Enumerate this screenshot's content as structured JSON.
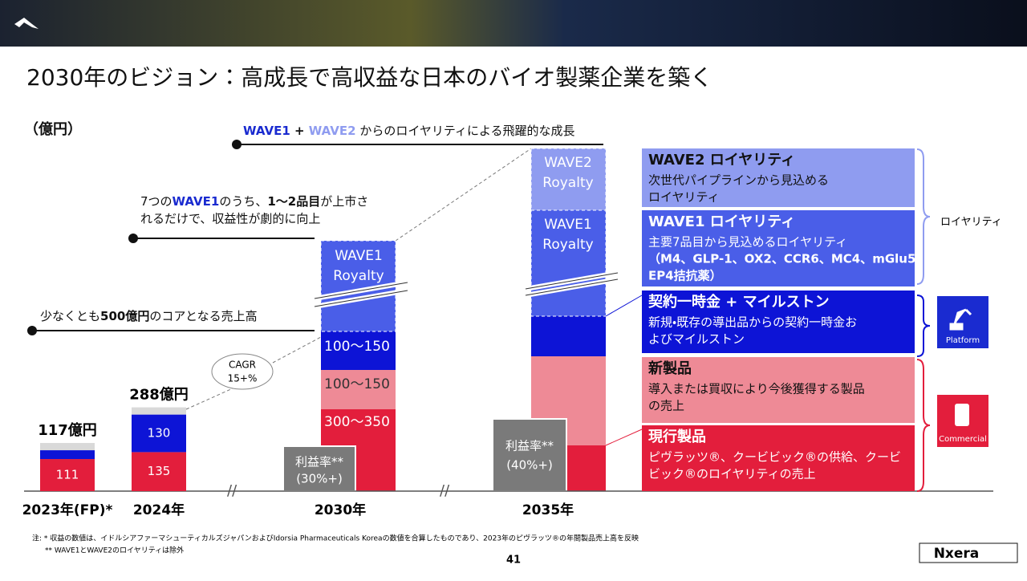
{
  "header": {
    "title": "2030年のビジョン：高成長で高収益な日本のバイオ製薬企業を築く"
  },
  "unit": "（億円）",
  "headline": {
    "wave1": "WAVE1",
    "plus": " + ",
    "wave2": "WAVE2",
    "text": " からのロイヤリティによる飛躍的な成長"
  },
  "callouts": [
    {
      "line1": [
        "7つの",
        "WAVE1",
        "のうち、",
        "1〜2品目",
        "が上市さ"
      ],
      "line2": "れるだけで、収益性が劇的に向上"
    },
    {
      "line1": [
        "少なくとも",
        "500億円",
        "のコアとなる売上高"
      ]
    }
  ],
  "cagr": [
    "CAGR",
    "15+%"
  ],
  "chart": {
    "bars": [
      {
        "total": "117億円",
        "values": [
          111
        ]
      },
      {
        "total": "288億円",
        "values": [
          135,
          130
        ]
      }
    ],
    "ranges_2030": [
      "300〜350",
      "100〜150",
      "100〜150"
    ],
    "royalty_2030": [
      "WAVE1",
      "Royalty"
    ],
    "royalty_2035": [
      [
        "WAVE2",
        "Royalty"
      ],
      [
        "WAVE1",
        "Royalty"
      ]
    ],
    "margin_2030": [
      "利益率**",
      "(30%+)"
    ],
    "margin_2035": [
      "利益率**",
      "(40%+)"
    ],
    "years": [
      "2023年(FP)*",
      "2024年",
      "2030年",
      "2035年"
    ]
  },
  "legend": [
    {
      "title": "WAVE2 ロイヤリティ",
      "lines": [
        "次世代パイプラインから見込める",
        "ロイヤリティ"
      ]
    },
    {
      "title": "WAVE1 ロイヤリティ",
      "lines": [
        "主要7品目から見込めるロイヤリティ",
        "（M4、GLP-1、OX2、CCR6、MC4、mGlu5、",
        "EP4拮抗薬）"
      ]
    },
    {
      "title": "契約一時金 + マイルストン",
      "lines": [
        "新規・既存の導出品からの契約一時金お",
        "よびマイルストン"
      ]
    },
    {
      "title": "新製品",
      "lines": [
        "導入または買収により今後獲得する製品",
        "の売上"
      ]
    },
    {
      "title": "現行製品",
      "lines": [
        "ピヴラッツ®、クービビック®の供給、クービ",
        "ビック®のロイヤリティの売上"
      ]
    }
  ],
  "side": {
    "royalty": "ロイヤリティ",
    "platform": "Platform",
    "commercial": "Commercial"
  },
  "footnotes": [
    "注: * 収益の数値は、イドルシアファーマシューティカルズジャパンおよびIdorsia Pharmaceuticals Koreaの数値を合算したものであり、2023年のピヴラッツ®の年間製品売上高を反映",
    "** WAVE1とWAVE2のロイヤリティは除外"
  ],
  "page": "41",
  "logo": "Nxera"
}
